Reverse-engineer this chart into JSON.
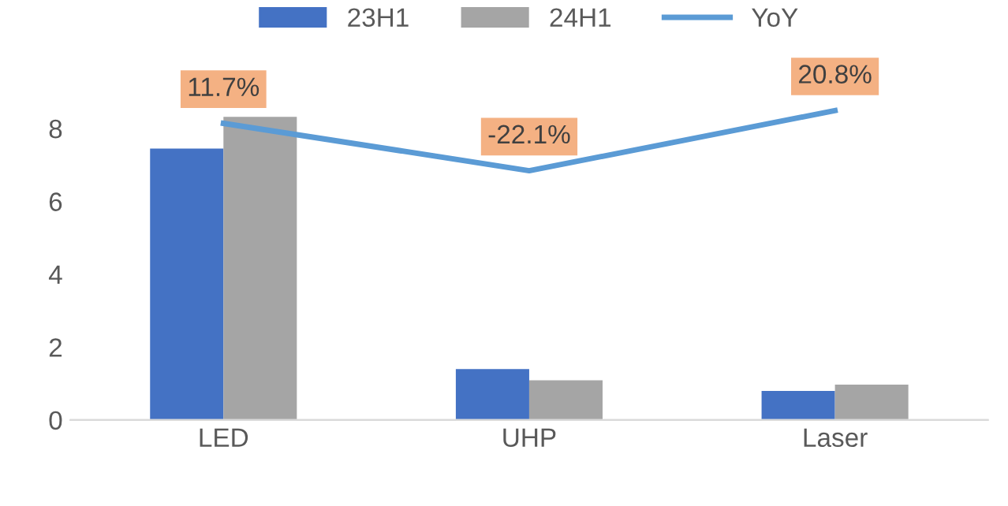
{
  "chart_data": {
    "type": "bar",
    "categories": [
      "LED",
      "UHP",
      "Laser"
    ],
    "series": [
      {
        "name": "23H1",
        "color": "#4472c4",
        "values": [
          7.45,
          1.4,
          0.8
        ]
      },
      {
        "name": "24H1",
        "color": "#a5a5a5",
        "values": [
          8.32,
          1.09,
          0.97
        ]
      },
      {
        "name": "YoY",
        "type": "line",
        "axis": "y2",
        "color": "#5b9bd5",
        "values": [
          11.7,
          -22.1,
          20.8
        ],
        "value_labels": [
          "11.7%",
          "-22.1%",
          "20.8%"
        ]
      }
    ],
    "ylim": [
      0,
      10
    ],
    "yticks": [
      0,
      2,
      4,
      6,
      8
    ],
    "y2lim": [
      -200,
      60
    ],
    "grid": false,
    "legend": "top",
    "marker": "none",
    "line_style": "solid"
  }
}
